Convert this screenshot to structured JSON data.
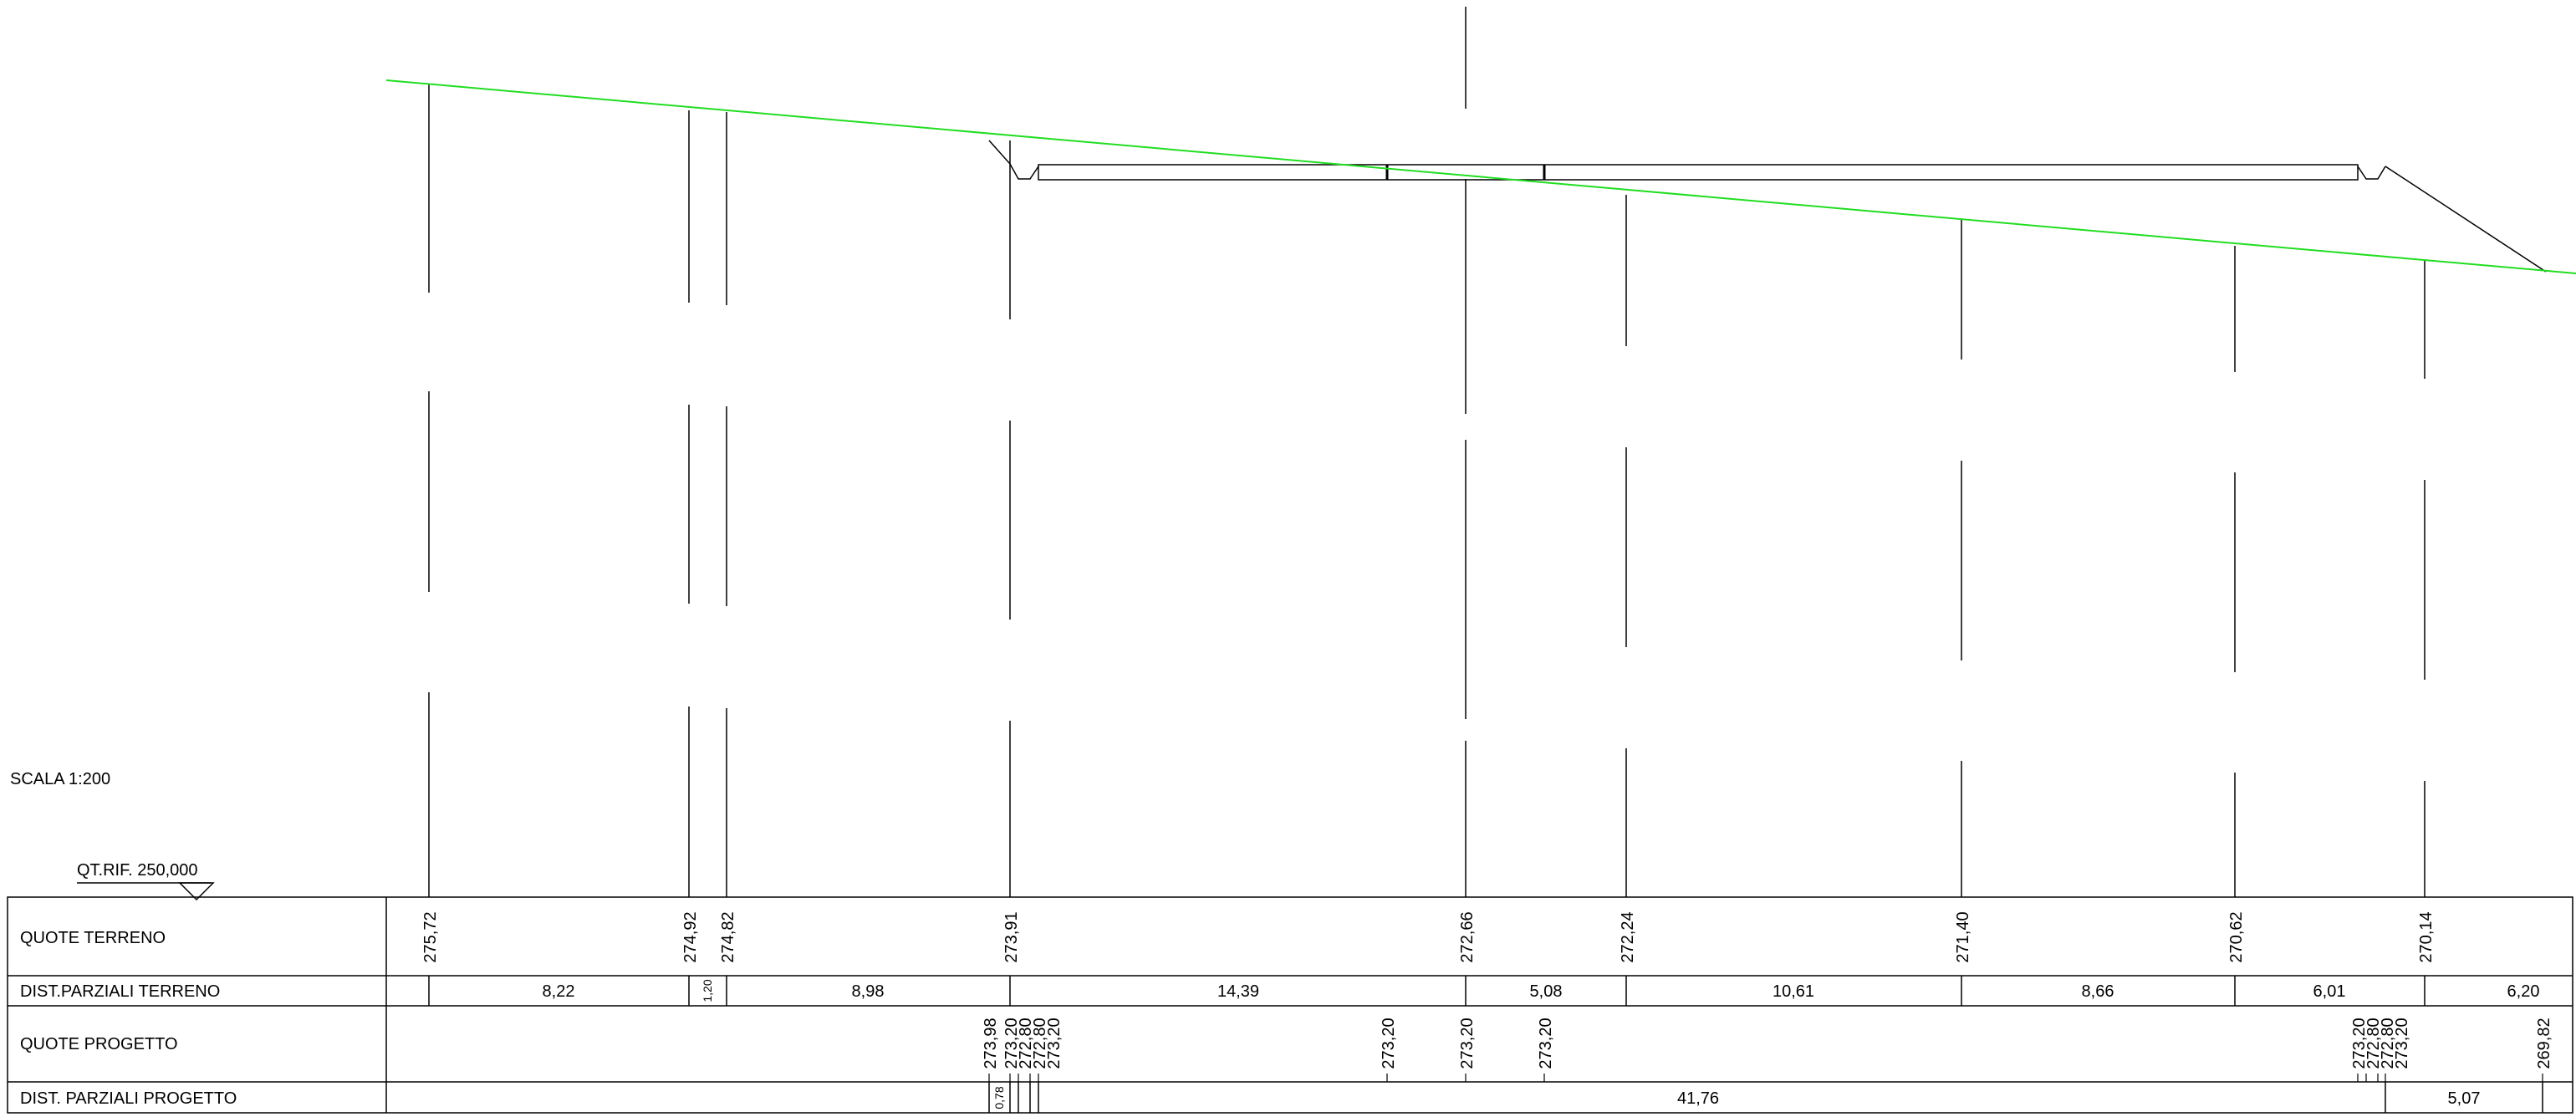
{
  "scale_label": "SCALA 1:200",
  "reference_label": "QT.RIF. 250,000",
  "colors": {
    "terrain": "#22dd22",
    "line": "#000000"
  },
  "rows": {
    "quote_terreno": "QUOTE TERRENO",
    "dist_parziali_terreno": "DIST.PARZIALI TERRENO",
    "quote_progetto": "QUOTE PROGETTO",
    "dist_parziali_progetto": "DIST. PARZIALI PROGETTO"
  },
  "terrain": {
    "elevations": [
      "275,72",
      "274,92",
      "274,82",
      "273,91",
      "272,66",
      "272,24",
      "271,40",
      "270,62",
      "270,14"
    ],
    "partial_distances": [
      "8,22",
      "1,20",
      "8,98",
      "14,39",
      "5,08",
      "10,61",
      "8,66",
      "6,01",
      "6,20"
    ]
  },
  "project": {
    "elevations": [
      "273,98",
      "273,20",
      "272,80",
      "272,80",
      "273,20",
      "273,20",
      "273,20",
      "273,20",
      "273,20",
      "272,80",
      "272,80",
      "273,20",
      "269,82"
    ],
    "partial_distances": [
      "0,78",
      "41,76",
      "5,07"
    ]
  }
}
